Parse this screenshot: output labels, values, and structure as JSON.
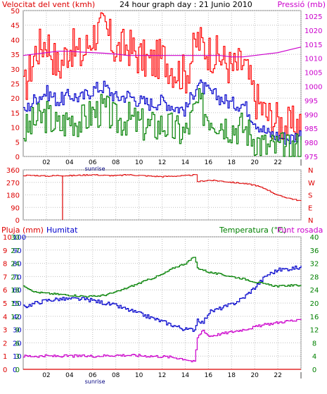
{
  "header": {
    "left_label": "Velocitat del vent (kmh)",
    "title": "24 hour graph day : 21 Junio 2010",
    "right_label": "Pressió (mb)"
  },
  "colors": {
    "wind_avg": "#008000",
    "wind_gust": "#ff0000",
    "wind_mid": "#0000cc",
    "pressure": "#cc00cc",
    "direction": "#dd0000",
    "humidity": "#0000cc",
    "temperature": "#008000",
    "dewpoint": "#cc00cc",
    "rain": "#dd0000",
    "grid": "#c0c0c0"
  },
  "chart_data": [
    {
      "type": "line",
      "title": "24 hour graph day : 21 Junio 2010",
      "ylabel": "Velocitat del vent (kmh)",
      "y2label": "Pressió (mb)",
      "ylim": [
        0,
        50
      ],
      "y2lim": [
        975,
        1027
      ],
      "yticks": [
        "0",
        "5",
        "10",
        "15",
        "20",
        "25",
        "30",
        "35",
        "40",
        "45",
        "50"
      ],
      "y2ticks": [
        "975",
        "980",
        "985",
        "990",
        "995",
        "1000",
        "1005",
        "1010",
        "1015",
        "1020",
        "1025"
      ],
      "xticks": [
        "02",
        "04",
        "06",
        "08",
        "10",
        "12",
        "14",
        "16",
        "18",
        "20",
        "22",
        "|"
      ],
      "sunrise_label": "sunrise",
      "x": [
        0,
        1,
        2,
        3,
        4,
        5,
        6,
        7,
        8,
        9,
        10,
        11,
        12,
        13,
        14,
        15,
        16,
        17,
        18,
        19,
        20,
        21,
        22,
        23,
        24
      ],
      "series": [
        {
          "role": "gust",
          "values": [
            22,
            36,
            40,
            30,
            38,
            34,
            42,
            44,
            36,
            38,
            34,
            32,
            34,
            30,
            28,
            40,
            36,
            34,
            30,
            32,
            20,
            14,
            12,
            10,
            12
          ]
        },
        {
          "role": "mid",
          "values": [
            15,
            20,
            22,
            19,
            21,
            20,
            23,
            24,
            20,
            21,
            19,
            18,
            19,
            17,
            16,
            25,
            22,
            20,
            18,
            18,
            12,
            8,
            7,
            6,
            8
          ]
        },
        {
          "role": "average",
          "values": [
            8,
            12,
            14,
            10,
            13,
            12,
            15,
            16,
            12,
            13,
            11,
            10,
            11,
            9,
            8,
            18,
            14,
            12,
            10,
            10,
            6,
            3,
            3,
            2,
            4
          ]
        },
        {
          "role": "pressure",
          "values": [
            1011,
            1011.5,
            1012,
            1012.5,
            1012.5,
            1012.2,
            1012,
            1011.8,
            1011.5,
            1011,
            1011,
            1011,
            1011,
            1011,
            1011,
            1011,
            1011,
            1011,
            1010.5,
            1010.5,
            1011,
            1011.5,
            1012,
            1013,
            1014
          ]
        }
      ]
    },
    {
      "type": "line",
      "ylabel": "direction",
      "ylim": [
        0,
        360
      ],
      "yticks": [
        "0",
        "90",
        "180",
        "270",
        "360"
      ],
      "compass": [
        "N",
        "W",
        "S",
        "E",
        "N"
      ],
      "x": [
        0,
        1,
        2,
        3,
        4,
        5,
        6,
        7,
        8,
        9,
        10,
        11,
        12,
        13,
        14,
        14.9,
        15,
        16,
        17,
        18,
        19,
        20,
        21,
        22,
        23,
        24
      ],
      "values": [
        320,
        320,
        315,
        320,
        318,
        322,
        325,
        320,
        318,
        325,
        320,
        315,
        312,
        315,
        318,
        325,
        275,
        285,
        280,
        270,
        262,
        250,
        220,
        175,
        155,
        135
      ]
    },
    {
      "type": "line",
      "ylabels": [
        "Pluja (mm)",
        "Humitat",
        "Temperatura (°C)",
        "Punt rosada"
      ],
      "rain_ticks": [
        "0",
        "1",
        "2",
        "3",
        "4",
        "5",
        "6",
        "7",
        "8",
        "9",
        "10"
      ],
      "humidity_ticks": [
        "0",
        "10",
        "20",
        "30",
        "40",
        "50",
        "60",
        "70",
        "80",
        "90",
        "100"
      ],
      "temp_left_ticks": [
        "0",
        "3",
        "6",
        "9",
        "12",
        "15",
        "18",
        "21",
        "24",
        "27",
        "30"
      ],
      "temp_right_ticks": [
        "0",
        "4",
        "8",
        "12",
        "16",
        "20",
        "24",
        "28",
        "32",
        "36",
        "40"
      ],
      "xticks": [
        "02",
        "04",
        "06",
        "08",
        "10",
        "12",
        "14",
        "16",
        "18",
        "20",
        "22",
        "|"
      ],
      "sunrise_label": "sunrise",
      "x": [
        0,
        1,
        2,
        3,
        4,
        5,
        6,
        7,
        8,
        9,
        10,
        11,
        12,
        13,
        14,
        14.8,
        15,
        15.5,
        16,
        17,
        18,
        19,
        20,
        21,
        22,
        23,
        24
      ],
      "series": [
        {
          "role": "humidity",
          "values": [
            47,
            50,
            52,
            53,
            53,
            53,
            52,
            50,
            48,
            45,
            42,
            39,
            36,
            33,
            30,
            30,
            38,
            35,
            43,
            46,
            49,
            54,
            62,
            71,
            75,
            76,
            77
          ]
        },
        {
          "role": "temperature",
          "values": [
            19,
            17.5,
            17.2,
            17,
            16.8,
            16.6,
            16.5,
            16.8,
            17.5,
            18.5,
            19.5,
            20.5,
            21.5,
            23,
            24,
            25.5,
            23,
            22.5,
            22,
            21.5,
            21,
            20.5,
            19.8,
            19.2,
            18.8,
            19,
            19
          ]
        },
        {
          "role": "dewpoint",
          "values": [
            3,
            3,
            3,
            3,
            3,
            3,
            3,
            3.1,
            3.2,
            3.2,
            3.1,
            3,
            2.9,
            2.7,
            2.3,
            1.6,
            7,
            9,
            7.5,
            8,
            8.5,
            9,
            9.6,
            10.2,
            10.6,
            11,
            11
          ]
        },
        {
          "role": "rain",
          "values": [
            0,
            0,
            0,
            0,
            0,
            0,
            0,
            0,
            0,
            0,
            0,
            0,
            0,
            0,
            0,
            0,
            0,
            0,
            0,
            0,
            0,
            0,
            0,
            0,
            0,
            0,
            0
          ]
        }
      ]
    }
  ]
}
